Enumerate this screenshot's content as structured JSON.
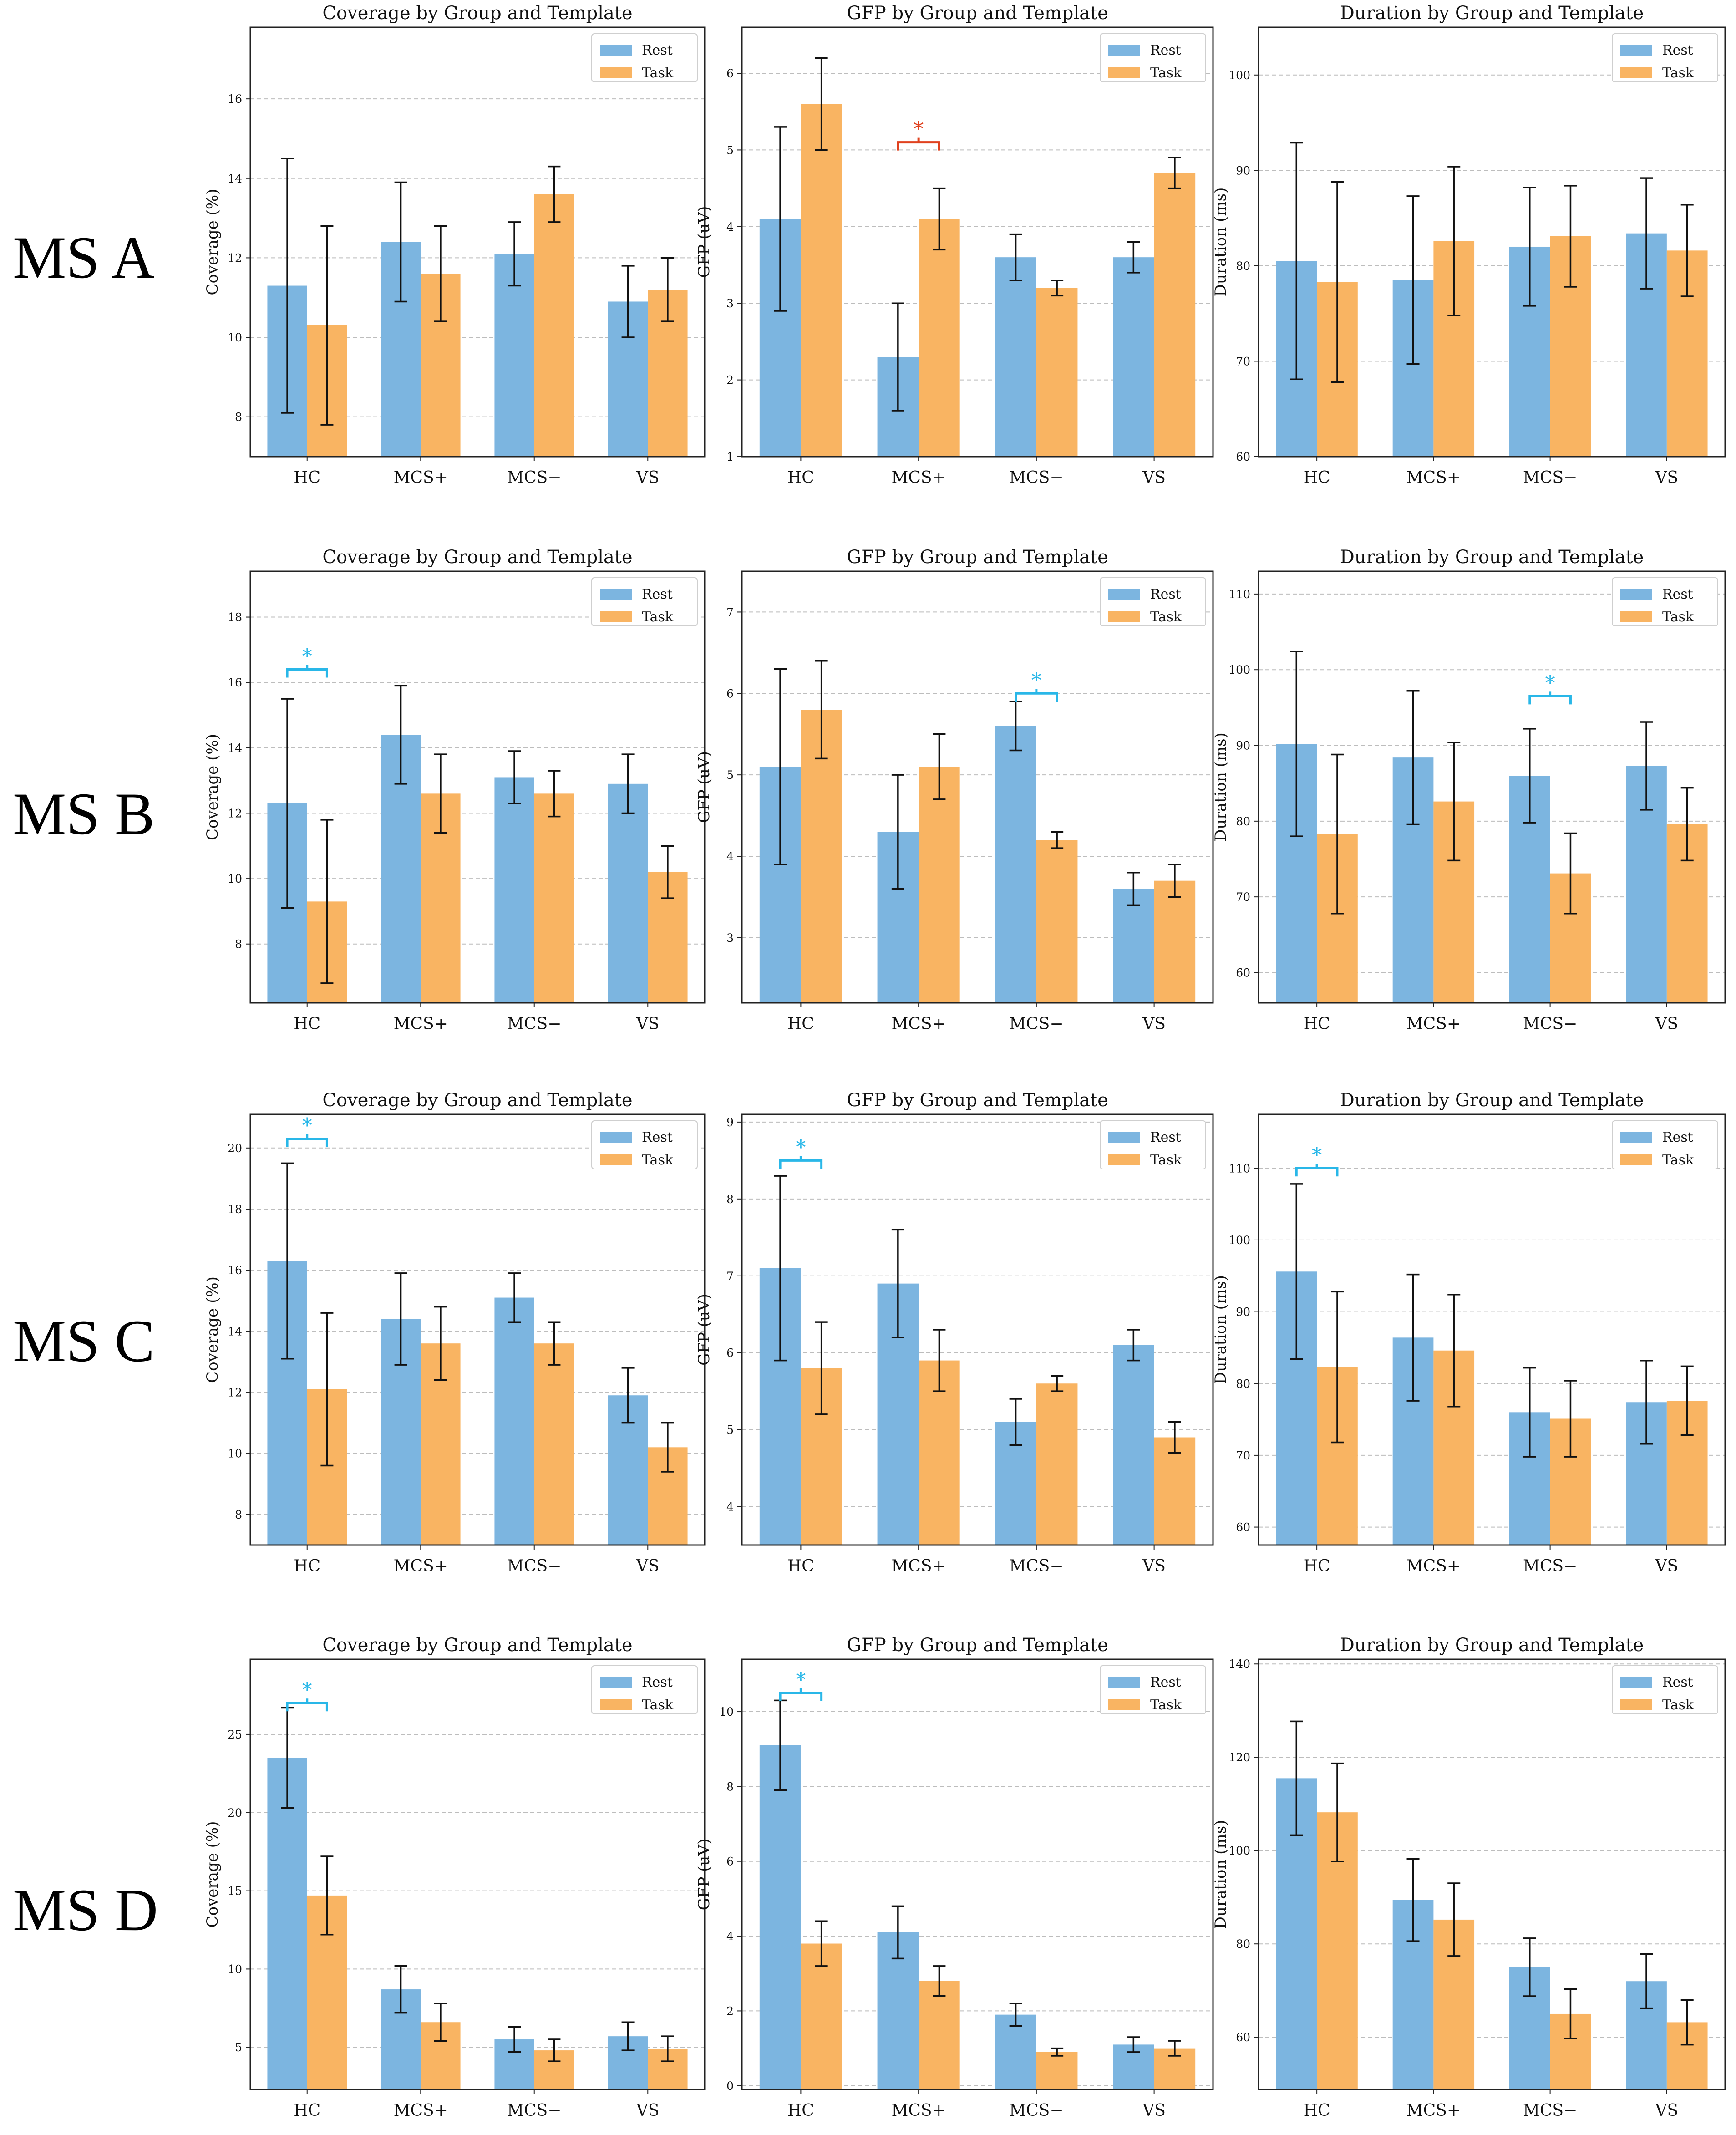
{
  "row_labels": [
    "MS A",
    "MS B",
    "MS C",
    "MS D"
  ],
  "colors": {
    "rest": "#7cb5e0",
    "task": "#f9b462",
    "sig_red": "#e0411e",
    "sig_blue": "#29b7e8",
    "err": "#111111",
    "grid": "#bdbdbd"
  },
  "chart_data": [
    {
      "type": "bar",
      "row": "MS A",
      "title": "Coverage by Group and Template",
      "xlabel": "",
      "ylabel": "Coverage (%)",
      "categories": [
        "HC",
        "MCS+",
        "MCS−",
        "VS"
      ],
      "ylim": [
        7,
        17.8
      ],
      "yticks": [
        8,
        10,
        12,
        14,
        16
      ],
      "legend": [
        "Rest",
        "Task"
      ],
      "series": [
        {
          "name": "Rest",
          "values": [
            11.3,
            12.4,
            12.1,
            10.9
          ],
          "err": [
            3.2,
            1.5,
            0.8,
            0.9
          ]
        },
        {
          "name": "Task",
          "values": [
            10.3,
            11.6,
            13.6,
            11.2
          ],
          "err": [
            2.5,
            1.2,
            0.7,
            0.8
          ]
        }
      ],
      "significance": []
    },
    {
      "type": "bar",
      "row": "MS A",
      "title": "GFP by Group and Template",
      "xlabel": "",
      "ylabel": "GFP (uV)",
      "categories": [
        "HC",
        "MCS+",
        "MCS−",
        "VS"
      ],
      "ylim": [
        1,
        6.6
      ],
      "yticks": [
        1,
        2,
        3,
        4,
        5,
        6
      ],
      "legend": [
        "Rest",
        "Task"
      ],
      "series": [
        {
          "name": "Rest",
          "values": [
            4.1,
            2.3,
            3.6,
            3.6
          ],
          "err": [
            1.2,
            0.7,
            0.3,
            0.2
          ]
        },
        {
          "name": "Task",
          "values": [
            5.6,
            4.1,
            3.2,
            4.7
          ],
          "err": [
            0.6,
            0.4,
            0.1,
            0.2
          ]
        }
      ],
      "significance": [
        {
          "group": 1,
          "label": "*",
          "color": "red",
          "y": 5.1
        }
      ]
    },
    {
      "type": "bar",
      "row": "MS A",
      "title": "Duration by Group and Template",
      "xlabel": "",
      "ylabel": "Duration (ms)",
      "categories": [
        "HC",
        "MCS+",
        "MCS−",
        "VS"
      ],
      "ylim": [
        60,
        105
      ],
      "yticks": [
        60,
        70,
        80,
        90,
        100
      ],
      "legend": [
        "Rest",
        "Task"
      ],
      "series": [
        {
          "name": "Rest",
          "values": [
            80.5,
            78.5,
            82.0,
            83.4
          ],
          "err": [
            12.4,
            8.8,
            6.2,
            5.8
          ]
        },
        {
          "name": "Task",
          "values": [
            78.3,
            82.6,
            83.1,
            81.6
          ],
          "err": [
            10.5,
            7.8,
            5.3,
            4.8
          ]
        }
      ],
      "significance": []
    },
    {
      "type": "bar",
      "row": "MS B",
      "title": "Coverage by Group and Template",
      "xlabel": "",
      "ylabel": "Coverage (%)",
      "categories": [
        "HC",
        "MCS+",
        "MCS−",
        "VS"
      ],
      "ylim": [
        6.2,
        19.4
      ],
      "yticks": [
        8,
        10,
        12,
        14,
        16,
        18
      ],
      "legend": [
        "Rest",
        "Task"
      ],
      "series": [
        {
          "name": "Rest",
          "values": [
            12.3,
            14.4,
            13.1,
            12.9
          ],
          "err": [
            3.2,
            1.5,
            0.8,
            0.9
          ]
        },
        {
          "name": "Task",
          "values": [
            9.3,
            12.6,
            12.6,
            10.2
          ],
          "err": [
            2.5,
            1.2,
            0.7,
            0.8
          ]
        }
      ],
      "significance": [
        {
          "group": 0,
          "label": "*",
          "color": "blue",
          "y": 16.4
        }
      ]
    },
    {
      "type": "bar",
      "row": "MS B",
      "title": "GFP by Group and Template",
      "xlabel": "",
      "ylabel": "GFP (uV)",
      "categories": [
        "HC",
        "MCS+",
        "MCS−",
        "VS"
      ],
      "ylim": [
        2.2,
        7.5
      ],
      "yticks": [
        3,
        4,
        5,
        6,
        7
      ],
      "legend": [
        "Rest",
        "Task"
      ],
      "series": [
        {
          "name": "Rest",
          "values": [
            5.1,
            4.3,
            5.6,
            3.6
          ],
          "err": [
            1.2,
            0.7,
            0.3,
            0.2
          ]
        },
        {
          "name": "Task",
          "values": [
            5.8,
            5.1,
            4.2,
            3.7
          ],
          "err": [
            0.6,
            0.4,
            0.1,
            0.2
          ]
        }
      ],
      "significance": [
        {
          "group": 2,
          "label": "*",
          "color": "blue",
          "y": 6.0
        }
      ]
    },
    {
      "type": "bar",
      "row": "MS B",
      "title": "Duration by Group and Template",
      "xlabel": "",
      "ylabel": "Duration (ms)",
      "categories": [
        "HC",
        "MCS+",
        "MCS−",
        "VS"
      ],
      "ylim": [
        56,
        113
      ],
      "yticks": [
        60,
        70,
        80,
        90,
        100,
        110
      ],
      "legend": [
        "Rest",
        "Task"
      ],
      "series": [
        {
          "name": "Rest",
          "values": [
            90.2,
            88.4,
            86.0,
            87.3
          ],
          "err": [
            12.2,
            8.8,
            6.2,
            5.8
          ]
        },
        {
          "name": "Task",
          "values": [
            78.3,
            82.6,
            73.1,
            79.6
          ],
          "err": [
            10.5,
            7.8,
            5.3,
            4.8
          ]
        }
      ],
      "significance": [
        {
          "group": 2,
          "label": "*",
          "color": "blue",
          "y": 96.5
        }
      ]
    },
    {
      "type": "bar",
      "row": "MS C",
      "title": "Coverage by Group and Template",
      "xlabel": "",
      "ylabel": "Coverage (%)",
      "categories": [
        "HC",
        "MCS+",
        "MCS−",
        "VS"
      ],
      "ylim": [
        7,
        21.1
      ],
      "yticks": [
        8,
        10,
        12,
        14,
        16,
        18,
        20
      ],
      "legend": [
        "Rest",
        "Task"
      ],
      "series": [
        {
          "name": "Rest",
          "values": [
            16.3,
            14.4,
            15.1,
            11.9
          ],
          "err": [
            3.2,
            1.5,
            0.8,
            0.9
          ]
        },
        {
          "name": "Task",
          "values": [
            12.1,
            13.6,
            13.6,
            10.2
          ],
          "err": [
            2.5,
            1.2,
            0.7,
            0.8
          ]
        }
      ],
      "significance": [
        {
          "group": 0,
          "label": "*",
          "color": "blue",
          "y": 20.3
        }
      ]
    },
    {
      "type": "bar",
      "row": "MS C",
      "title": "GFP by Group and Template",
      "xlabel": "",
      "ylabel": "GFP (uV)",
      "categories": [
        "HC",
        "MCS+",
        "MCS−",
        "VS"
      ],
      "ylim": [
        3.5,
        9.1
      ],
      "yticks": [
        4,
        5,
        6,
        7,
        8,
        9
      ],
      "legend": [
        "Rest",
        "Task"
      ],
      "series": [
        {
          "name": "Rest",
          "values": [
            7.1,
            6.9,
            5.1,
            6.1
          ],
          "err": [
            1.2,
            0.7,
            0.3,
            0.2
          ]
        },
        {
          "name": "Task",
          "values": [
            5.8,
            5.9,
            5.6,
            4.9
          ],
          "err": [
            0.6,
            0.4,
            0.1,
            0.2
          ]
        }
      ],
      "significance": [
        {
          "group": 0,
          "label": "*",
          "color": "blue",
          "y": 8.5
        }
      ]
    },
    {
      "type": "bar",
      "row": "MS C",
      "title": "Duration by Group and Template",
      "xlabel": "",
      "ylabel": "Duration (ms)",
      "categories": [
        "HC",
        "MCS+",
        "MCS−",
        "VS"
      ],
      "ylim": [
        57.5,
        117.5
      ],
      "yticks": [
        60,
        70,
        80,
        90,
        100,
        110
      ],
      "legend": [
        "Rest",
        "Task"
      ],
      "series": [
        {
          "name": "Rest",
          "values": [
            95.6,
            86.4,
            76.0,
            77.4
          ],
          "err": [
            12.2,
            8.8,
            6.2,
            5.8
          ]
        },
        {
          "name": "Task",
          "values": [
            82.3,
            84.6,
            75.1,
            77.6
          ],
          "err": [
            10.5,
            7.8,
            5.3,
            4.8
          ]
        }
      ],
      "significance": [
        {
          "group": 0,
          "label": "*",
          "color": "blue",
          "y": 110.0
        }
      ]
    },
    {
      "type": "bar",
      "row": "MS D",
      "title": "Coverage by Group and Template",
      "xlabel": "",
      "ylabel": "Coverage (%)",
      "categories": [
        "HC",
        "MCS+",
        "MCS−",
        "VS"
      ],
      "ylim": [
        2.3,
        29.8
      ],
      "yticks": [
        5,
        10,
        15,
        20,
        25
      ],
      "legend": [
        "Rest",
        "Task"
      ],
      "series": [
        {
          "name": "Rest",
          "values": [
            23.5,
            8.7,
            5.5,
            5.7
          ],
          "err": [
            3.2,
            1.5,
            0.8,
            0.9
          ]
        },
        {
          "name": "Task",
          "values": [
            14.7,
            6.6,
            4.8,
            4.9
          ],
          "err": [
            2.5,
            1.2,
            0.7,
            0.8
          ]
        }
      ],
      "significance": [
        {
          "group": 0,
          "label": "*",
          "color": "blue",
          "y": 27.0
        }
      ]
    },
    {
      "type": "bar",
      "row": "MS D",
      "title": "GFP by Group and Template",
      "xlabel": "",
      "ylabel": "GFP (uV)",
      "categories": [
        "HC",
        "MCS+",
        "MCS−",
        "VS"
      ],
      "ylim": [
        -0.1,
        11.4
      ],
      "yticks": [
        0,
        2,
        4,
        6,
        8,
        10
      ],
      "legend": [
        "Rest",
        "Task"
      ],
      "series": [
        {
          "name": "Rest",
          "values": [
            9.1,
            4.1,
            1.9,
            1.1
          ],
          "err": [
            1.2,
            0.7,
            0.3,
            0.2
          ]
        },
        {
          "name": "Task",
          "values": [
            3.8,
            2.8,
            0.9,
            1.0
          ],
          "err": [
            0.6,
            0.4,
            0.1,
            0.2
          ]
        }
      ],
      "significance": [
        {
          "group": 0,
          "label": "*",
          "color": "blue",
          "y": 10.5
        }
      ]
    },
    {
      "type": "bar",
      "row": "MS D",
      "title": "Duration by Group and Template",
      "xlabel": "",
      "ylabel": "Duration (ms)",
      "categories": [
        "HC",
        "MCS+",
        "MCS−",
        "VS"
      ],
      "ylim": [
        48.8,
        141
      ],
      "yticks": [
        60,
        80,
        100,
        120,
        140
      ],
      "legend": [
        "Rest",
        "Task"
      ],
      "series": [
        {
          "name": "Rest",
          "values": [
            115.5,
            89.4,
            75.0,
            72.0
          ],
          "err": [
            12.2,
            8.8,
            6.2,
            5.8
          ]
        },
        {
          "name": "Task",
          "values": [
            108.2,
            85.2,
            65.0,
            63.2
          ],
          "err": [
            10.5,
            7.8,
            5.3,
            4.8
          ]
        }
      ],
      "significance": []
    }
  ]
}
